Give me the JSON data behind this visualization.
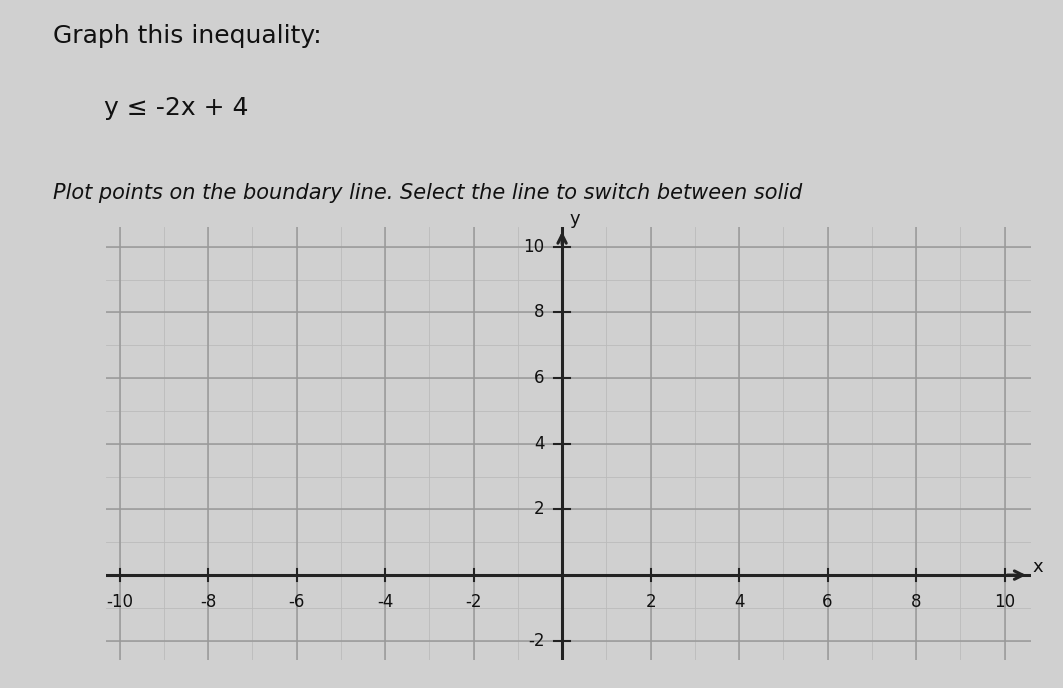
{
  "title_line1": "Graph this inequality:",
  "title_line2": "y ≤ -2x + 4",
  "subtitle": "Plot points on the boundary line. Select the line to switch between solid",
  "background_color": "#d0d0d0",
  "grid_fine_color": "#bbbbbb",
  "grid_major_color": "#999999",
  "axis_color": "#222222",
  "text_color": "#111111",
  "xlim": [
    -10,
    10
  ],
  "ylim": [
    -2,
    10
  ],
  "xticks": [
    -10,
    -8,
    -6,
    -4,
    -2,
    2,
    4,
    6,
    8,
    10
  ],
  "yticks": [
    -2,
    2,
    4,
    6,
    8,
    10
  ],
  "xlabel": "x",
  "ylabel": "y",
  "slope": -2,
  "intercept": 4
}
